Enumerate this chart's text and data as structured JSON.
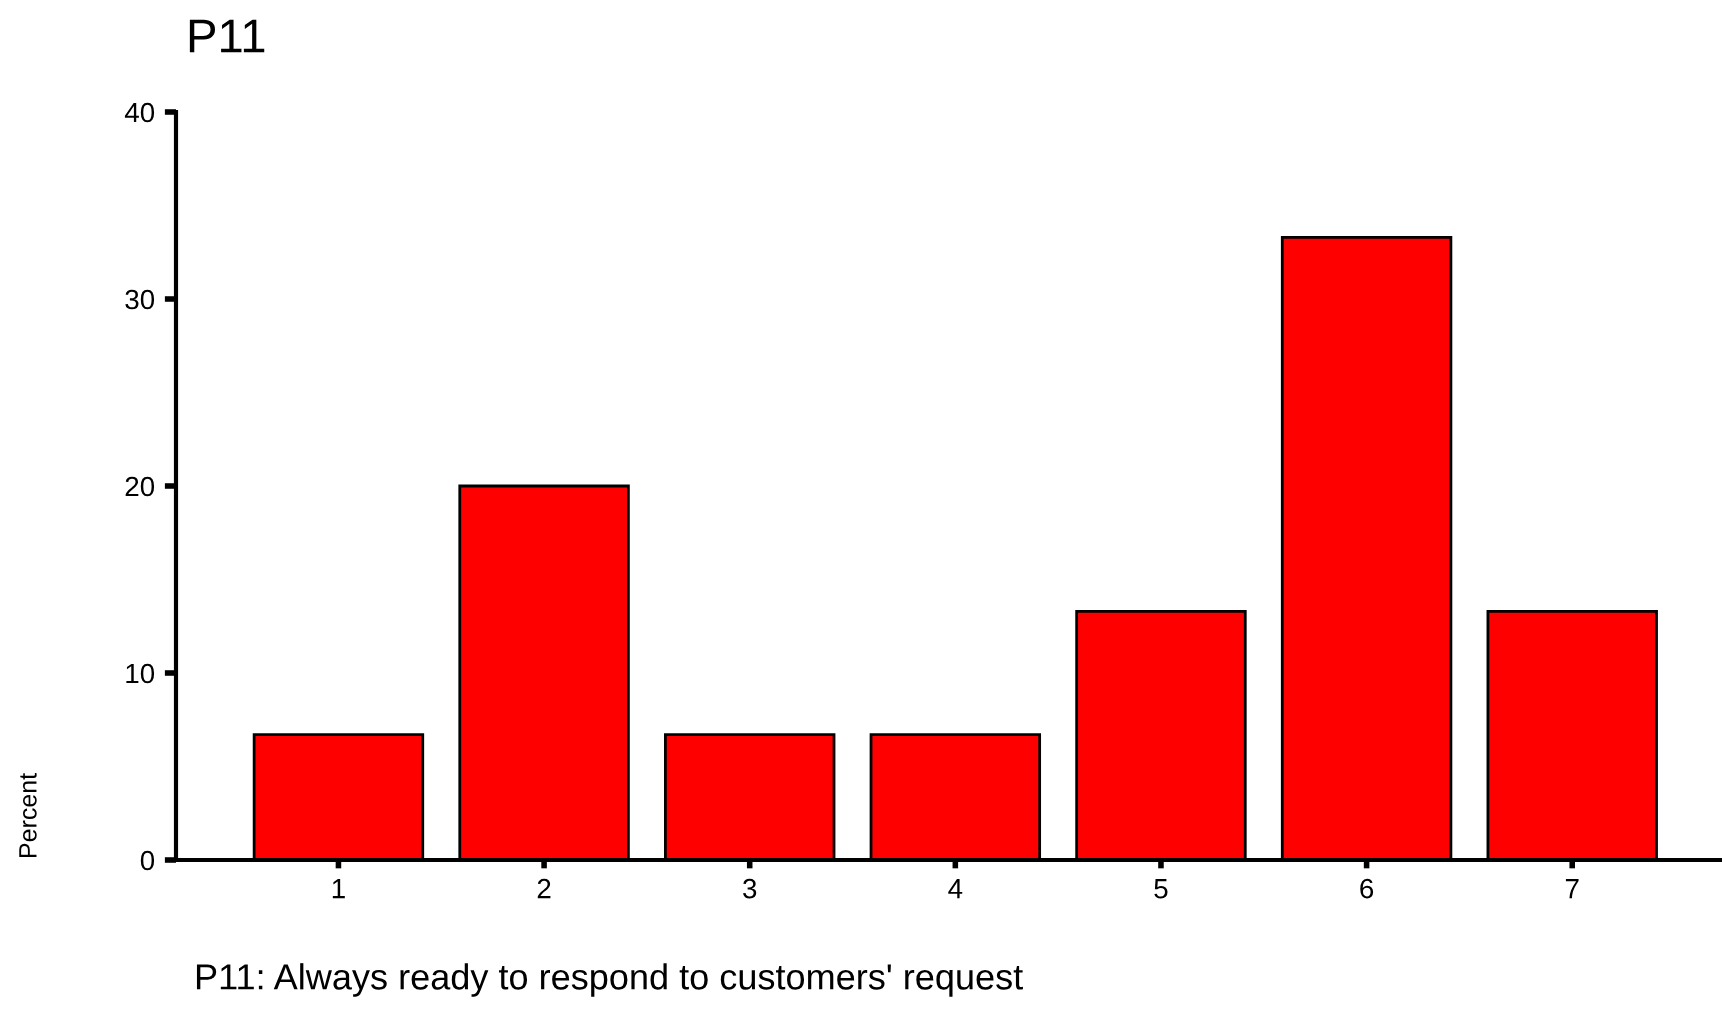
{
  "chart_data": {
    "type": "bar",
    "title": "P11",
    "xlabel": "P11: Always ready to respond to customers' request",
    "ylabel": "Percent",
    "categories": [
      "1",
      "2",
      "3",
      "4",
      "5",
      "6",
      "7"
    ],
    "values": [
      6.7,
      20,
      6.7,
      6.7,
      13.3,
      33.3,
      13.3
    ],
    "color": "#ff0000",
    "ylim": [
      0,
      40
    ],
    "yticks": [
      0,
      10,
      20,
      30,
      40
    ],
    "grid": false,
    "legend": false
  }
}
